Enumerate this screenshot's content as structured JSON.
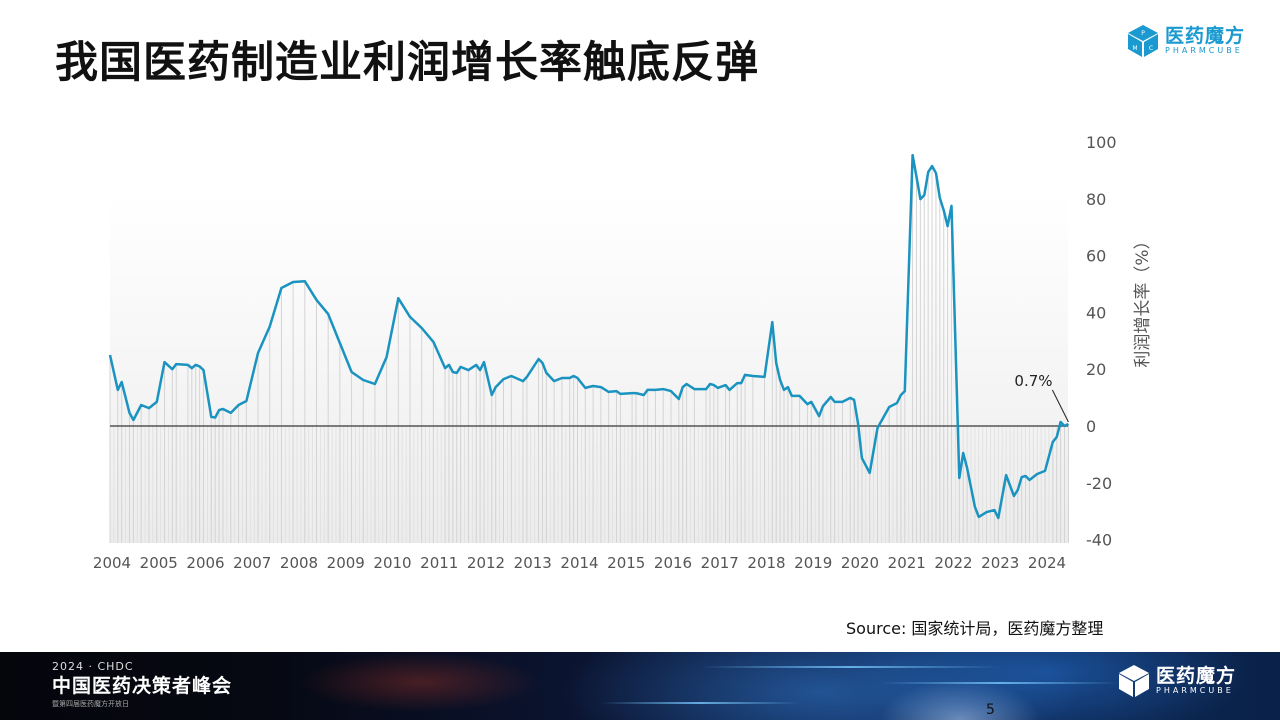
{
  "title": "我国医药制造业利润增长率触底反弹",
  "logo": {
    "cn": "医药魔方",
    "en": "PHARMCUBE",
    "cube_letters": [
      "P",
      "M",
      "C"
    ]
  },
  "source": "Source: 国家统计局，医药魔方整理",
  "footer": {
    "line1": "2024 · CHDC",
    "line2": "中国医药决策者峰会",
    "line3": "暨第四届医药魔方开放日",
    "page": "5"
  },
  "colors": {
    "line": "#1a93c0",
    "logo": "#1a9ad0",
    "zero_line": "#555555"
  },
  "chart_data": {
    "type": "line",
    "title": "",
    "xlabel": "",
    "ylabel": "利润增长率（%）",
    "ylim": [
      -40,
      100
    ],
    "yticks": [
      "100",
      "80",
      "60",
      "40",
      "20",
      "0",
      "-20",
      "-40"
    ],
    "ytick_values": [
      100,
      80,
      60,
      40,
      20,
      0,
      -20,
      -40
    ],
    "xticks": [
      "2004",
      "2005",
      "2006",
      "2007",
      "2008",
      "2009",
      "2010",
      "2011",
      "2012",
      "2013",
      "2014",
      "2015",
      "2016",
      "2017",
      "2018",
      "2019",
      "2020",
      "2021",
      "2022",
      "2023",
      "2024"
    ],
    "y_axis_position": "right",
    "grid": false,
    "annotation": {
      "text": "0.7%",
      "x": "2024-07",
      "y": 0.7
    },
    "series": [
      {
        "x": [
          "2004-01",
          "2004-03",
          "2004-04",
          "2004-06",
          "2004-07",
          "2004-09",
          "2004-11",
          "2005-01",
          "2005-03",
          "2005-05",
          "2005-06",
          "2005-09",
          "2005-10",
          "2005-11",
          "2005-12",
          "2006-01",
          "2006-03",
          "2006-04",
          "2006-05",
          "2006-06",
          "2006-08",
          "2006-10",
          "2006-12",
          "2007-03",
          "2007-06",
          "2007-09",
          "2007-12",
          "2008-03",
          "2008-06",
          "2008-09",
          "2008-12",
          "2009-03",
          "2009-06",
          "2009-09",
          "2009-12",
          "2010-03",
          "2010-06",
          "2010-09",
          "2010-12",
          "2011-03",
          "2011-04",
          "2011-05",
          "2011-06",
          "2011-07",
          "2011-09",
          "2011-11",
          "2011-12",
          "2012-01",
          "2012-03",
          "2012-04",
          "2012-06",
          "2012-08",
          "2012-11",
          "2012-12",
          "2013-03",
          "2013-04",
          "2013-05",
          "2013-07",
          "2013-09",
          "2013-11",
          "2013-12",
          "2014-01",
          "2014-03",
          "2014-05",
          "2014-07",
          "2014-09",
          "2014-11",
          "2014-12",
          "2015-03",
          "2015-04",
          "2015-06",
          "2015-07",
          "2015-09",
          "2015-11",
          "2016-01",
          "2016-03",
          "2016-04",
          "2016-05",
          "2016-07",
          "2016-10",
          "2016-11",
          "2016-12",
          "2017-01",
          "2017-03",
          "2017-04",
          "2017-06",
          "2017-07",
          "2017-08",
          "2017-10",
          "2018-01",
          "2018-03",
          "2018-04",
          "2018-05",
          "2018-06",
          "2018-07",
          "2018-08",
          "2018-10",
          "2018-12",
          "2019-01",
          "2019-03",
          "2019-04",
          "2019-06",
          "2019-07",
          "2019-09",
          "2019-11",
          "2019-12",
          "2020-01",
          "2020-02",
          "2020-04",
          "2020-06",
          "2020-09",
          "2020-11",
          "2020-12",
          "2021-01",
          "2021-03",
          "2021-04",
          "2021-05",
          "2021-06",
          "2021-07",
          "2021-08",
          "2021-09",
          "2021-10",
          "2021-11",
          "2021-12",
          "2022-01",
          "2022-03",
          "2022-04",
          "2022-05",
          "2022-07",
          "2022-08",
          "2022-10",
          "2022-12",
          "2023-01",
          "2023-03",
          "2023-05",
          "2023-06",
          "2023-07",
          "2023-08",
          "2023-09",
          "2023-11",
          "2024-01",
          "2024-03",
          "2024-04",
          "2024-05",
          "2024-06",
          "2024-07"
        ],
        "values": [
          25,
          12.7,
          15.5,
          4.6,
          2.1,
          7.4,
          6.3,
          8.5,
          22.5,
          20,
          21.8,
          21.5,
          20.4,
          21.5,
          21,
          19.7,
          3.2,
          3,
          5.6,
          6,
          4.6,
          7.4,
          8.8,
          25.7,
          35,
          48.6,
          50.7,
          51,
          44.4,
          39.4,
          29.2,
          19,
          16.2,
          14.8,
          24.3,
          45,
          38.4,
          34.5,
          29.6,
          20.4,
          21.5,
          19,
          18.7,
          20.8,
          19.7,
          21.5,
          19.7,
          22.5,
          10.9,
          13.7,
          16.5,
          17.6,
          15.8,
          17.3,
          23.6,
          22.2,
          18.7,
          15.8,
          16.9,
          16.9,
          17.6,
          16.9,
          13.4,
          14.1,
          13.7,
          12,
          12.3,
          11.3,
          11.6,
          11.6,
          10.9,
          12.7,
          12.7,
          13,
          12.3,
          9.5,
          13.7,
          14.8,
          13,
          13,
          14.8,
          14.4,
          13.4,
          14.4,
          12.7,
          15.1,
          15.1,
          18,
          17.6,
          17.3,
          36.6,
          22.2,
          16.2,
          12.7,
          13.7,
          10.6,
          10.6,
          7.7,
          8.5,
          3.5,
          7,
          10.2,
          8.5,
          8.5,
          9.9,
          9.2,
          1,
          -11.3,
          -16.5,
          -0.7,
          6.7,
          8.1,
          10.9,
          12.3,
          95.4,
          87.7,
          79.9,
          81.3,
          89.4,
          91.5,
          89,
          80.3,
          76,
          70.4,
          77.5,
          -18.3,
          -9.5,
          -14.8,
          -28.5,
          -32,
          -30.3,
          -29.6,
          -32.4,
          -17.3,
          -24.6,
          -22.5,
          -18,
          -17.6,
          -19,
          -16.9,
          -15.8,
          -5.6,
          -3.9,
          1.4,
          0,
          0.7
        ]
      }
    ]
  }
}
